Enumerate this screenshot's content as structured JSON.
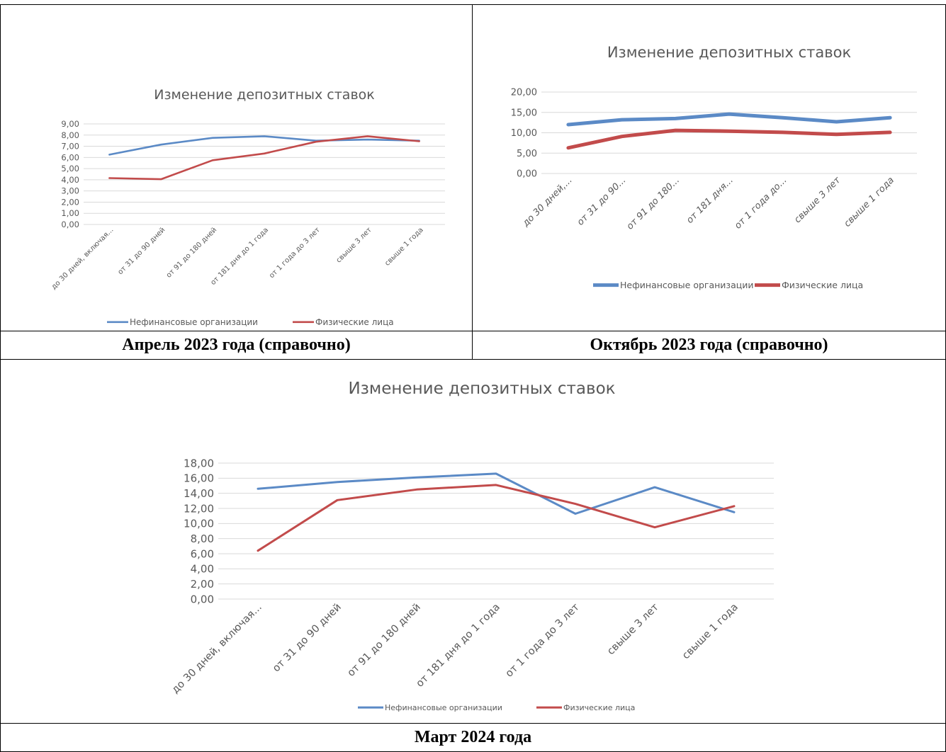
{
  "captions": {
    "april_2023": "Апрель 2023 года (справочно)",
    "october_2023": "Октябрь 2023 года (справочно)",
    "march_2024": "Март 2024 года"
  },
  "colors": {
    "series_nonfinancial": "#5b8ac6",
    "series_individuals": "#c24b4b",
    "grid": "#d9d9d9",
    "text": "#595959"
  },
  "chart_data": [
    {
      "type": "line",
      "title": "Изменение депозитных ставок",
      "categories": [
        "до 30 дней, включая...",
        "от 31 до 90 дней",
        "от 91 до 180 дней",
        "от 181 дня до 1 года",
        "от 1 года до 3 лет",
        "свыше 3 лет",
        "свыше 1 года"
      ],
      "series": [
        {
          "name": "Нефинансовые организации",
          "values": [
            6.25,
            7.15,
            7.75,
            7.9,
            7.5,
            7.6,
            7.5
          ]
        },
        {
          "name": "Физические лица",
          "values": [
            4.15,
            4.05,
            5.75,
            6.35,
            7.4,
            7.9,
            7.45
          ]
        }
      ],
      "ylim": [
        0,
        9
      ],
      "yticks": [
        "0,00",
        "1,00",
        "2,00",
        "3,00",
        "4,00",
        "5,00",
        "6,00",
        "7,00",
        "8,00",
        "9,00"
      ],
      "grid": true,
      "legend": "bottom"
    },
    {
      "type": "line",
      "title": "Изменение депозитных ставок",
      "categories": [
        "до 30 дней,...",
        "от 31 до 90...",
        "от 91 до 180...",
        "от 181 дня...",
        "от 1 года до...",
        "свыше 3 лет",
        "свыше 1 года"
      ],
      "series": [
        {
          "name": "Нефинансовые организации",
          "values": [
            12.0,
            13.2,
            13.5,
            14.6,
            13.7,
            12.7,
            13.7
          ]
        },
        {
          "name": "Физические лица",
          "values": [
            6.3,
            9.1,
            10.6,
            10.4,
            10.1,
            9.6,
            10.1
          ]
        }
      ],
      "ylim": [
        0,
        20
      ],
      "yticks": [
        "0,00",
        "5,00",
        "10,00",
        "15,00",
        "20,00"
      ],
      "grid": true,
      "legend": "bottom"
    },
    {
      "type": "line",
      "title": "Изменение депозитных ставок",
      "categories": [
        "до 30 дней, включая...",
        "от 31 до 90 дней",
        "от 91 до 180 дней",
        "от 181 дня до 1 года",
        "от 1 года до 3 лет",
        "свыше 3 лет",
        "свыше 1 года"
      ],
      "series": [
        {
          "name": "Нефинансовые организации",
          "values": [
            14.6,
            15.5,
            16.1,
            16.6,
            11.3,
            14.8,
            11.5
          ]
        },
        {
          "name": "Физические лица",
          "values": [
            6.4,
            13.1,
            14.5,
            15.1,
            12.6,
            9.5,
            12.3
          ]
        }
      ],
      "ylim": [
        0,
        18
      ],
      "yticks": [
        "0,00",
        "2,00",
        "4,00",
        "6,00",
        "8,00",
        "10,00",
        "12,00",
        "14,00",
        "16,00",
        "18,00"
      ],
      "grid": true,
      "legend": "bottom"
    }
  ]
}
